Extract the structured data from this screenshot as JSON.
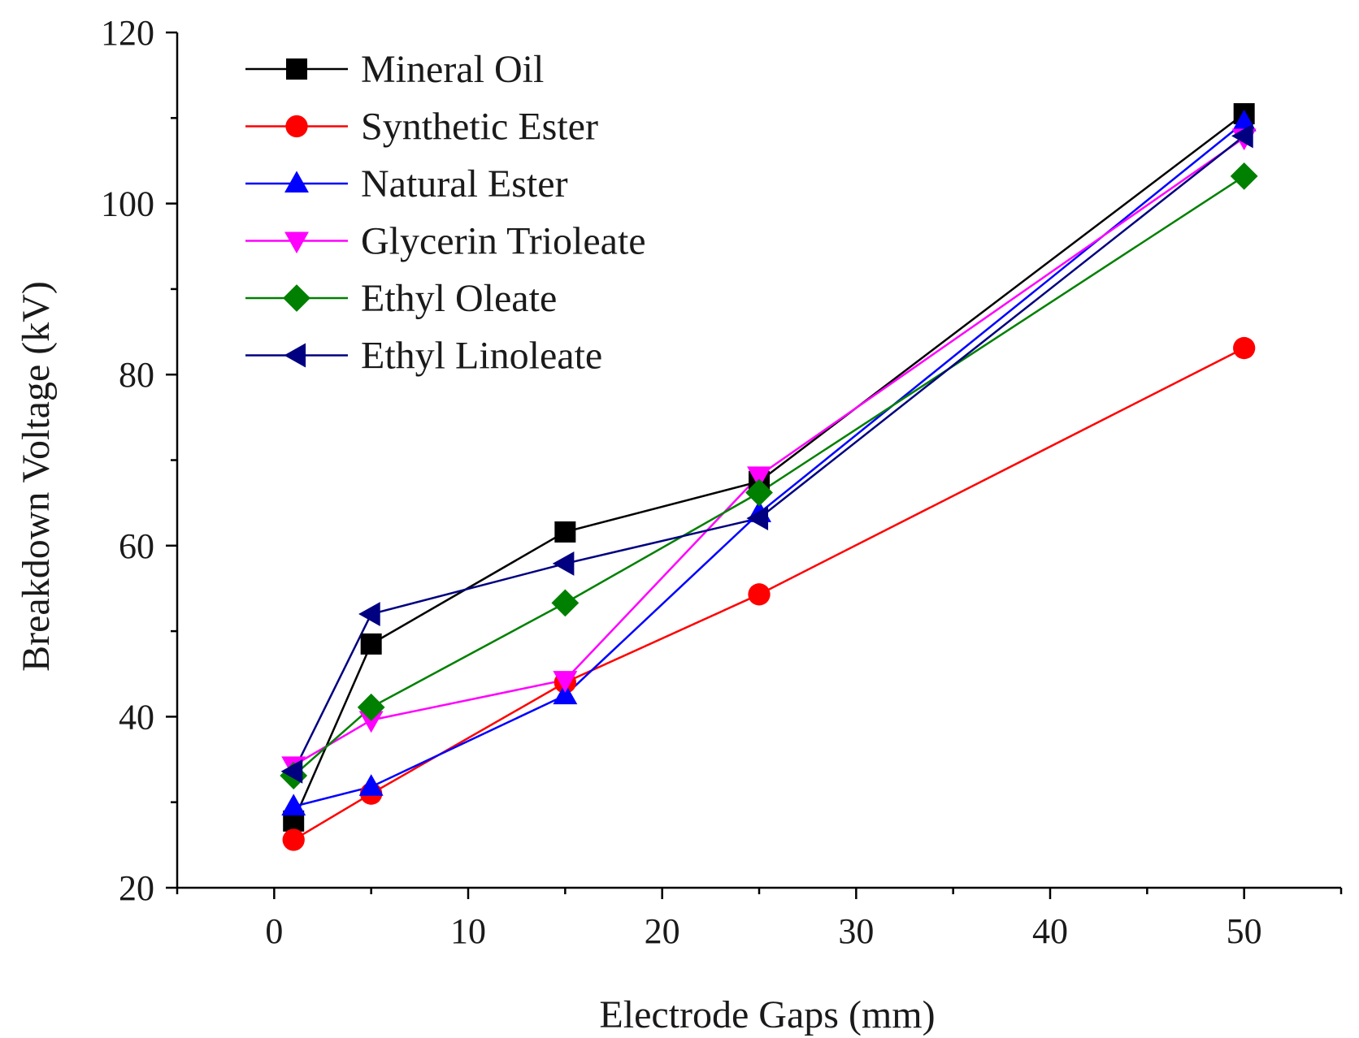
{
  "chart_data": {
    "type": "line",
    "title": "",
    "xlabel": "Electrode Gaps (mm)",
    "ylabel": "Breakdown Voltage (kV)",
    "xlim": [
      -5,
      55
    ],
    "ylim": [
      20,
      120
    ],
    "x_ticks": [
      0,
      10,
      20,
      30,
      40,
      50
    ],
    "y_ticks": [
      20,
      40,
      60,
      80,
      100,
      120
    ],
    "x_minor_step": 5,
    "y_minor_step": 10,
    "grid": false,
    "legend_position": "top-left",
    "x": [
      1,
      5,
      15,
      25,
      50
    ],
    "series": [
      {
        "name": "Mineral Oil",
        "color": "#000000",
        "marker": "square",
        "values": [
          27.8,
          48.5,
          61.6,
          67.5,
          110.5
        ]
      },
      {
        "name": "Synthetic Ester",
        "color": "#ff0000",
        "marker": "circle",
        "values": [
          25.6,
          31.0,
          44.0,
          54.3,
          83.1
        ]
      },
      {
        "name": "Natural Ester",
        "color": "#0000ff",
        "marker": "triangle-up",
        "values": [
          29.5,
          31.8,
          42.5,
          63.8,
          109.5
        ]
      },
      {
        "name": "Glycerin Trioleate",
        "color": "#ff00ff",
        "marker": "triangle-down",
        "values": [
          34.3,
          39.6,
          44.3,
          68.2,
          107.7
        ]
      },
      {
        "name": "Ethyl Oleate",
        "color": "#008000",
        "marker": "diamond",
        "values": [
          33.1,
          41.1,
          53.3,
          66.2,
          103.2
        ]
      },
      {
        "name": "Ethyl Linoleate",
        "color": "#000080",
        "marker": "triangle-left",
        "values": [
          33.6,
          52.0,
          57.9,
          63.2,
          107.9
        ]
      }
    ]
  }
}
